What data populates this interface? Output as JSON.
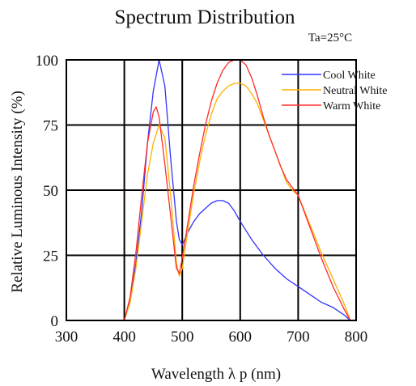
{
  "chart_data": {
    "type": "line",
    "title": "Spectrum Distribution",
    "subtitle": "Ta=25°C",
    "xlabel": "Wavelength  λ p (nm)",
    "ylabel": "Relative Luminous Intensity (%)",
    "xlim": [
      300,
      800
    ],
    "ylim": [
      0,
      100
    ],
    "xticks": [
      300,
      400,
      500,
      600,
      700,
      800
    ],
    "yticks": [
      0,
      25,
      50,
      75,
      100
    ],
    "grid": true,
    "legend_position": "top-right",
    "series": [
      {
        "name": "Cool White",
        "color": "#3333ff",
        "points": [
          [
            400,
            0
          ],
          [
            410,
            8
          ],
          [
            420,
            22
          ],
          [
            430,
            42
          ],
          [
            440,
            68
          ],
          [
            450,
            88
          ],
          [
            460,
            100
          ],
          [
            470,
            90
          ],
          [
            480,
            62
          ],
          [
            490,
            38
          ],
          [
            495,
            31
          ],
          [
            500,
            29
          ],
          [
            510,
            34
          ],
          [
            520,
            38
          ],
          [
            530,
            41
          ],
          [
            540,
            43
          ],
          [
            550,
            45
          ],
          [
            560,
            46
          ],
          [
            570,
            46
          ],
          [
            580,
            45
          ],
          [
            590,
            42
          ],
          [
            600,
            38
          ],
          [
            620,
            31
          ],
          [
            640,
            25
          ],
          [
            660,
            20
          ],
          [
            680,
            16
          ],
          [
            700,
            13
          ],
          [
            720,
            10
          ],
          [
            740,
            7
          ],
          [
            760,
            5
          ],
          [
            780,
            2
          ],
          [
            790,
            0
          ]
        ]
      },
      {
        "name": "Neutral White",
        "color": "#ffb000",
        "points": [
          [
            400,
            0
          ],
          [
            410,
            7
          ],
          [
            420,
            20
          ],
          [
            430,
            38
          ],
          [
            440,
            56
          ],
          [
            450,
            68
          ],
          [
            460,
            75
          ],
          [
            470,
            70
          ],
          [
            480,
            48
          ],
          [
            490,
            22
          ],
          [
            495,
            17
          ],
          [
            500,
            20
          ],
          [
            510,
            35
          ],
          [
            520,
            49
          ],
          [
            530,
            61
          ],
          [
            540,
            71
          ],
          [
            550,
            79
          ],
          [
            560,
            85
          ],
          [
            570,
            88
          ],
          [
            580,
            90
          ],
          [
            590,
            91
          ],
          [
            600,
            91
          ],
          [
            610,
            90
          ],
          [
            620,
            87
          ],
          [
            630,
            83
          ],
          [
            640,
            77
          ],
          [
            650,
            71
          ],
          [
            660,
            65
          ],
          [
            670,
            59
          ],
          [
            680,
            53
          ],
          [
            690,
            50
          ],
          [
            700,
            48
          ],
          [
            720,
            37
          ],
          [
            740,
            26
          ],
          [
            760,
            16
          ],
          [
            780,
            6
          ],
          [
            790,
            0
          ]
        ]
      },
      {
        "name": "Warm White",
        "color": "#ff2a2a",
        "points": [
          [
            400,
            0
          ],
          [
            410,
            9
          ],
          [
            420,
            26
          ],
          [
            430,
            48
          ],
          [
            440,
            68
          ],
          [
            450,
            80
          ],
          [
            455,
            82
          ],
          [
            460,
            78
          ],
          [
            470,
            60
          ],
          [
            480,
            40
          ],
          [
            490,
            20
          ],
          [
            495,
            18
          ],
          [
            500,
            24
          ],
          [
            510,
            38
          ],
          [
            520,
            52
          ],
          [
            530,
            64
          ],
          [
            540,
            75
          ],
          [
            550,
            84
          ],
          [
            560,
            91
          ],
          [
            570,
            96
          ],
          [
            580,
            99
          ],
          [
            590,
            100
          ],
          [
            600,
            100
          ],
          [
            610,
            98
          ],
          [
            620,
            93
          ],
          [
            630,
            86
          ],
          [
            640,
            78
          ],
          [
            650,
            71
          ],
          [
            660,
            65
          ],
          [
            670,
            59
          ],
          [
            680,
            54
          ],
          [
            690,
            51
          ],
          [
            700,
            48
          ],
          [
            720,
            36
          ],
          [
            740,
            24
          ],
          [
            760,
            13
          ],
          [
            780,
            4
          ],
          [
            790,
            0
          ]
        ]
      }
    ]
  }
}
